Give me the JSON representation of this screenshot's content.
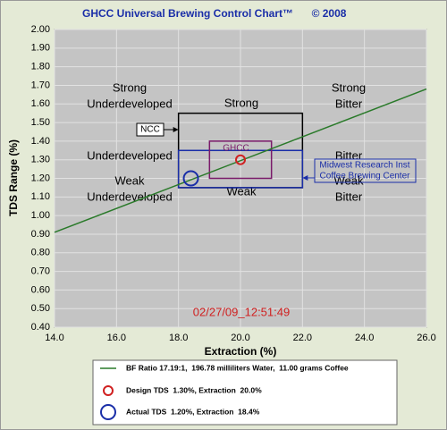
{
  "chart_data": {
    "type": "brewing-control",
    "title": "GHCC Universal Brewing Control Chart™",
    "subtitle": "© 2008",
    "x_label": "Extraction (%)",
    "y_label": "TDS Range (%)",
    "xlim": [
      14.0,
      26.0
    ],
    "ylim": [
      0.4,
      2.0
    ],
    "xticks": [
      {
        "value": 14,
        "label": "14.0"
      },
      {
        "value": 16,
        "label": "16.0"
      },
      {
        "value": 18,
        "label": "18.0"
      },
      {
        "value": 20,
        "label": "20.0"
      },
      {
        "value": 22,
        "label": "22.0"
      },
      {
        "value": 24,
        "label": "24.0"
      },
      {
        "value": 26,
        "label": "26.0"
      }
    ],
    "yticks": [
      {
        "value": 0.4,
        "label": "0.40"
      },
      {
        "value": 0.5,
        "label": "0.50"
      },
      {
        "value": 0.6,
        "label": "0.60"
      },
      {
        "value": 0.7,
        "label": "0.70"
      },
      {
        "value": 0.8,
        "label": "0.80"
      },
      {
        "value": 0.9,
        "label": "0.90"
      },
      {
        "value": 1,
        "label": "1.00"
      },
      {
        "value": 1.1,
        "label": "1.10"
      },
      {
        "value": 1.2,
        "label": "1.20"
      },
      {
        "value": 1.3,
        "label": "1.30"
      },
      {
        "value": 1.4,
        "label": "1.40"
      },
      {
        "value": 1.5,
        "label": "1.50"
      },
      {
        "value": 1.6,
        "label": "1.60"
      },
      {
        "value": 1.7,
        "label": "1.70"
      },
      {
        "value": 1.8,
        "label": "1.80"
      },
      {
        "value": 1.9,
        "label": "1.90"
      },
      {
        "value": 2,
        "label": "2.00"
      }
    ],
    "grid": true,
    "regions": [
      {
        "label": [
          "NCC"
        ],
        "color": "#000000",
        "xlim": [
          18,
          22
        ],
        "ylim": [
          1.15,
          1.55
        ]
      },
      {
        "label": [
          "Midwest Research Inst",
          "Coffee Brewing Center"
        ],
        "color": "#1a2ea8",
        "xlim": [
          18,
          22
        ],
        "ylim": [
          1.15,
          1.35
        ]
      },
      {
        "label": [
          "GHCC"
        ],
        "color": "#7a1a6a",
        "xlim": [
          19,
          21
        ],
        "ylim": [
          1.2,
          1.4
        ]
      }
    ],
    "zones": [
      [
        "Strong",
        "Underdeveloped"
      ],
      [
        "Strong"
      ],
      [
        "Strong",
        "Bitter"
      ],
      [
        "Underdeveloped"
      ],
      [
        "Bitter"
      ],
      [
        "Weak",
        "Underdeveloped"
      ],
      [
        "Weak"
      ],
      [
        "Weak",
        "Bitter"
      ]
    ],
    "timestamp": "02/27/09_12:51:49",
    "series": [
      {
        "name": "BF Ratio 17.19:1,  196.78 milliliters Water,  11.00 grams Coffee",
        "style": "line",
        "color": "#2a7a2a",
        "x": [
          14.0,
          26.0
        ],
        "values": [
          0.91,
          1.68
        ]
      },
      {
        "name": "Design TDS  1.30%, Extraction  20.0%",
        "style": "marker",
        "color": "#d02020",
        "x": [
          20.0
        ],
        "values": [
          1.3
        ]
      },
      {
        "name": "Actual TDS  1.20%, Extraction  18.4%",
        "style": "marker",
        "color": "#1a2ea8",
        "x": [
          18.4
        ],
        "values": [
          1.2
        ]
      }
    ]
  }
}
